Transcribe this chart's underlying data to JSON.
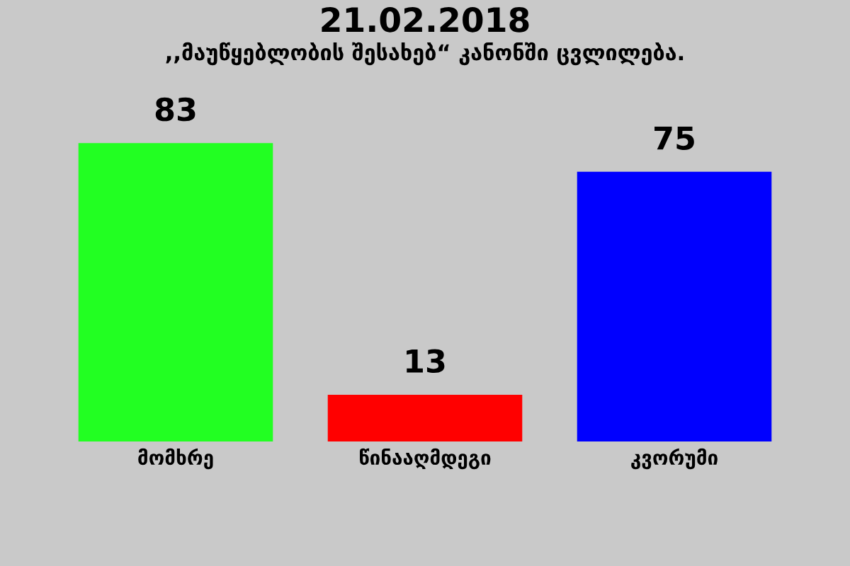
{
  "chart_data": {
    "type": "bar",
    "title": "21.02.2018",
    "subtitle": ",,მაუწყებლობის შესახებ“ კანონში ცვლილება.",
    "categories": [
      "მომხრე",
      "წინააღმდეგი",
      "კვორუმი"
    ],
    "values": [
      83,
      13,
      75
    ],
    "colors": [
      "#22ff22",
      "#ff0000",
      "#0000ff"
    ],
    "data_labels": true,
    "grid": false,
    "legend": false
  }
}
